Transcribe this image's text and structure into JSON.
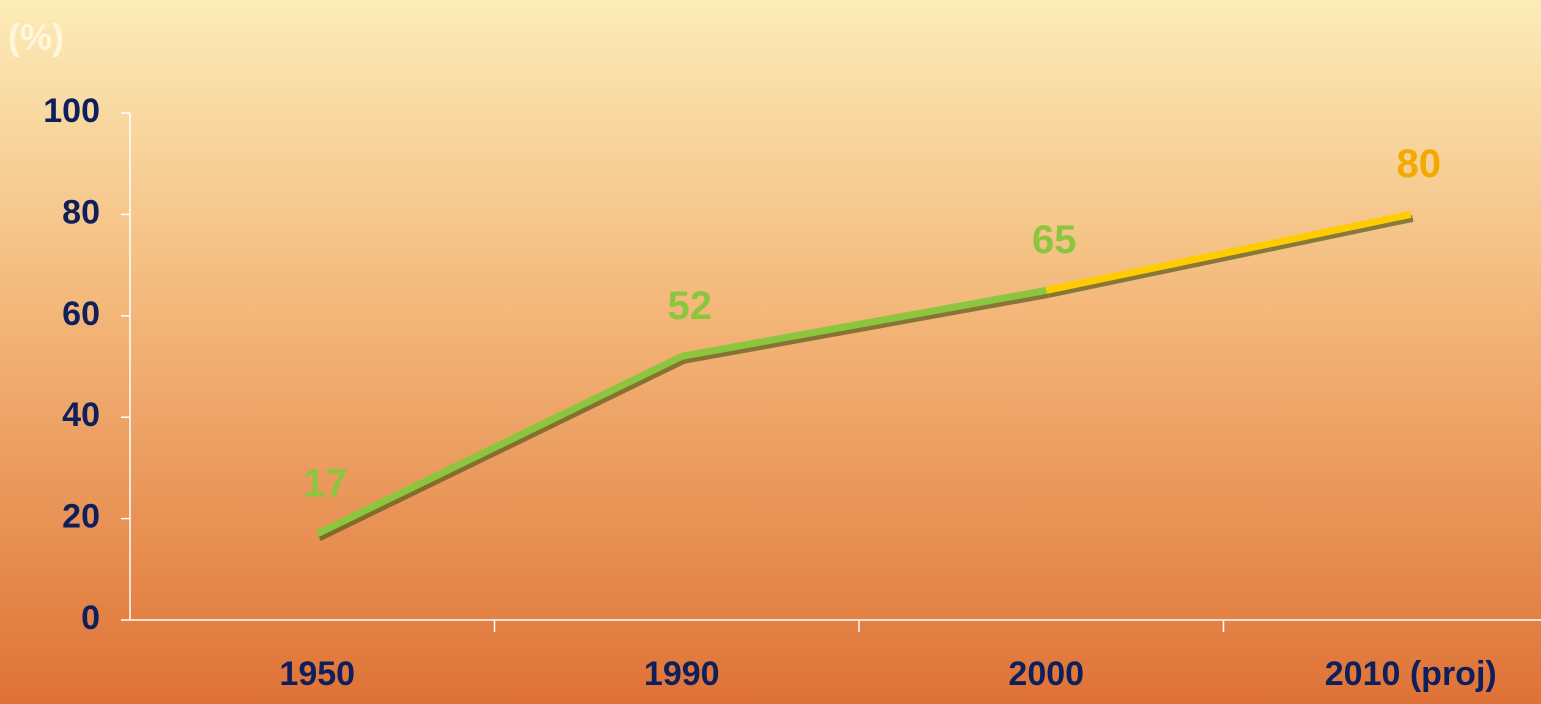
{
  "chart_data": {
    "type": "line",
    "y_label": "(%)",
    "categories": [
      "1950",
      "1990",
      "2000",
      "2010 (proj)"
    ],
    "values": [
      17,
      52,
      65,
      80
    ],
    "segment_colors": [
      "#8cc63f",
      "#8cc63f",
      "#ffcc00"
    ],
    "label_colors": [
      "#8cc63f",
      "#8cc63f",
      "#8cc63f",
      "#f2a900"
    ],
    "ylim": [
      0,
      100
    ],
    "yticks": [
      0,
      20,
      40,
      60,
      80,
      100
    ]
  }
}
